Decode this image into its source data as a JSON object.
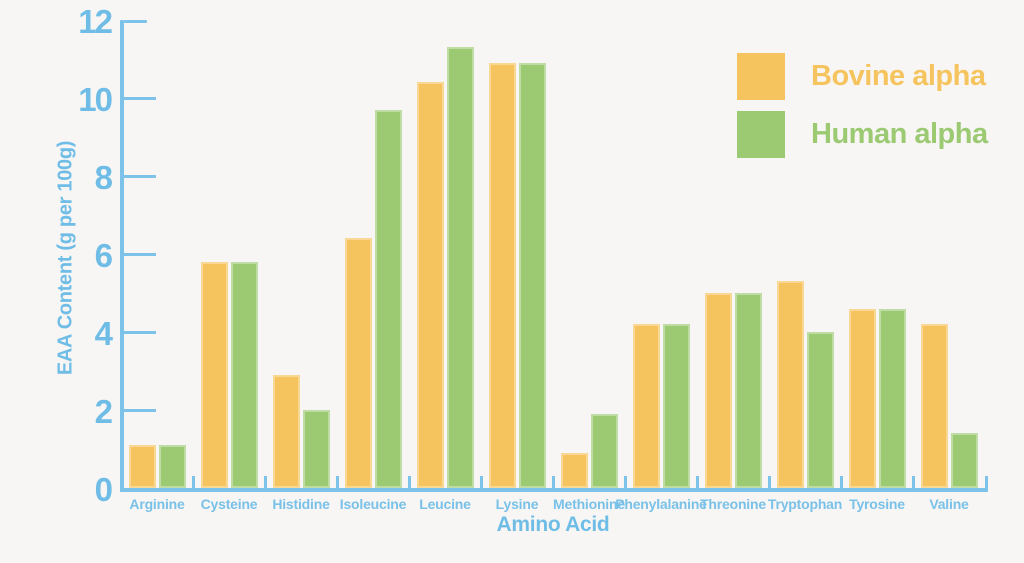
{
  "chart_data": {
    "type": "bar",
    "title": "",
    "xlabel": "Amino Acid",
    "ylabel": "EAA Content (g per 100g)",
    "ylim": [
      0,
      12
    ],
    "yticks": [
      0,
      2,
      4,
      6,
      8,
      10,
      12
    ],
    "grid": false,
    "legend_position": "top-right",
    "categories": [
      "Arginine",
      "Cysteine",
      "Histidine",
      "Isoleucine",
      "Leucine",
      "Lysine",
      "Methionine",
      "Phenylalanine",
      "Threonine",
      "Tryptophan",
      "Tyrosine",
      "Valine"
    ],
    "series": [
      {
        "name": "Bovine alpha",
        "color": "#F6C45E",
        "values": [
          1.1,
          5.8,
          2.9,
          6.4,
          10.4,
          10.9,
          0.9,
          4.2,
          5.0,
          5.3,
          4.6,
          4.2
        ]
      },
      {
        "name": "Human alpha",
        "color": "#9CCA73",
        "values": [
          1.1,
          5.8,
          2.0,
          9.7,
          11.3,
          10.9,
          1.9,
          4.2,
          5.0,
          4.0,
          4.6,
          1.4
        ]
      }
    ]
  },
  "colors": {
    "axis": "#7CC2E9",
    "tick_text": "#6FBDE6",
    "background": "#F7F6F4"
  }
}
